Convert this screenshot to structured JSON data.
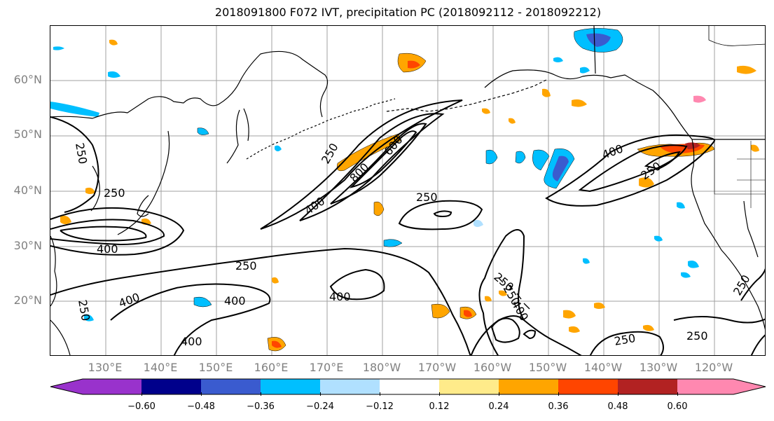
{
  "title": "2018091800 F072 IVT, precipitation PC (2018092112 - 2018092212)",
  "lat_labels": [
    "60°N",
    "50°N",
    "40°N",
    "30°N",
    "20°N"
  ],
  "lon_labels": [
    "130°E",
    "140°E",
    "150°E",
    "160°E",
    "170°E",
    "180°W",
    "170°W",
    "160°W",
    "150°W",
    "140°W",
    "130°W",
    "120°W"
  ],
  "colorbar": {
    "ticks": [
      "−0.60",
      "−0.48",
      "−0.36",
      "−0.24",
      "−0.12",
      "0.12",
      "0.24",
      "0.36",
      "0.48",
      "0.60"
    ],
    "colors": [
      "#9932cc",
      "#00008b",
      "#3a5bcf",
      "#00bfff",
      "#b0e0ff",
      "#ffffff",
      "#ffeb8a",
      "#ffa500",
      "#ff4500",
      "#b22222",
      "#ff88b0"
    ]
  },
  "contour_labels": [
    "250",
    "250",
    "250",
    "400",
    "400",
    "400",
    "400",
    "400",
    "600",
    "800",
    "250",
    "250",
    "250",
    "400",
    "400",
    "250",
    "250",
    "250",
    "250",
    "250",
    "400",
    "250"
  ],
  "colors": {
    "land_outline": "#000000",
    "grid": "#a0a0a0",
    "ivt_contour": "#000000"
  }
}
